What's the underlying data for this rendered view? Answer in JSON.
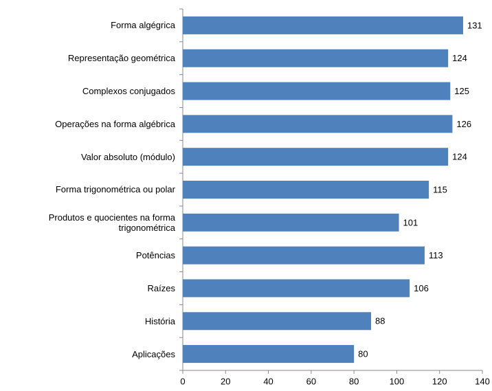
{
  "chart_data": {
    "type": "bar",
    "orientation": "horizontal",
    "categories": [
      "Forma algégrica",
      "Representação geométrica",
      "Complexos conjugados",
      "Operações na forma algébrica",
      "Valor absoluto (módulo)",
      "Forma trigonométrica ou polar",
      "Produtos e quocientes na forma trigonométrica",
      "Potências",
      "Raízes",
      "História",
      "Aplicações"
    ],
    "values": [
      131,
      124,
      125,
      126,
      124,
      115,
      101,
      113,
      106,
      88,
      80
    ],
    "color": "#4f81bd",
    "xlim": [
      0,
      140
    ],
    "xticks": [
      0,
      20,
      40,
      60,
      80,
      100,
      120,
      140
    ],
    "grid": false
  }
}
